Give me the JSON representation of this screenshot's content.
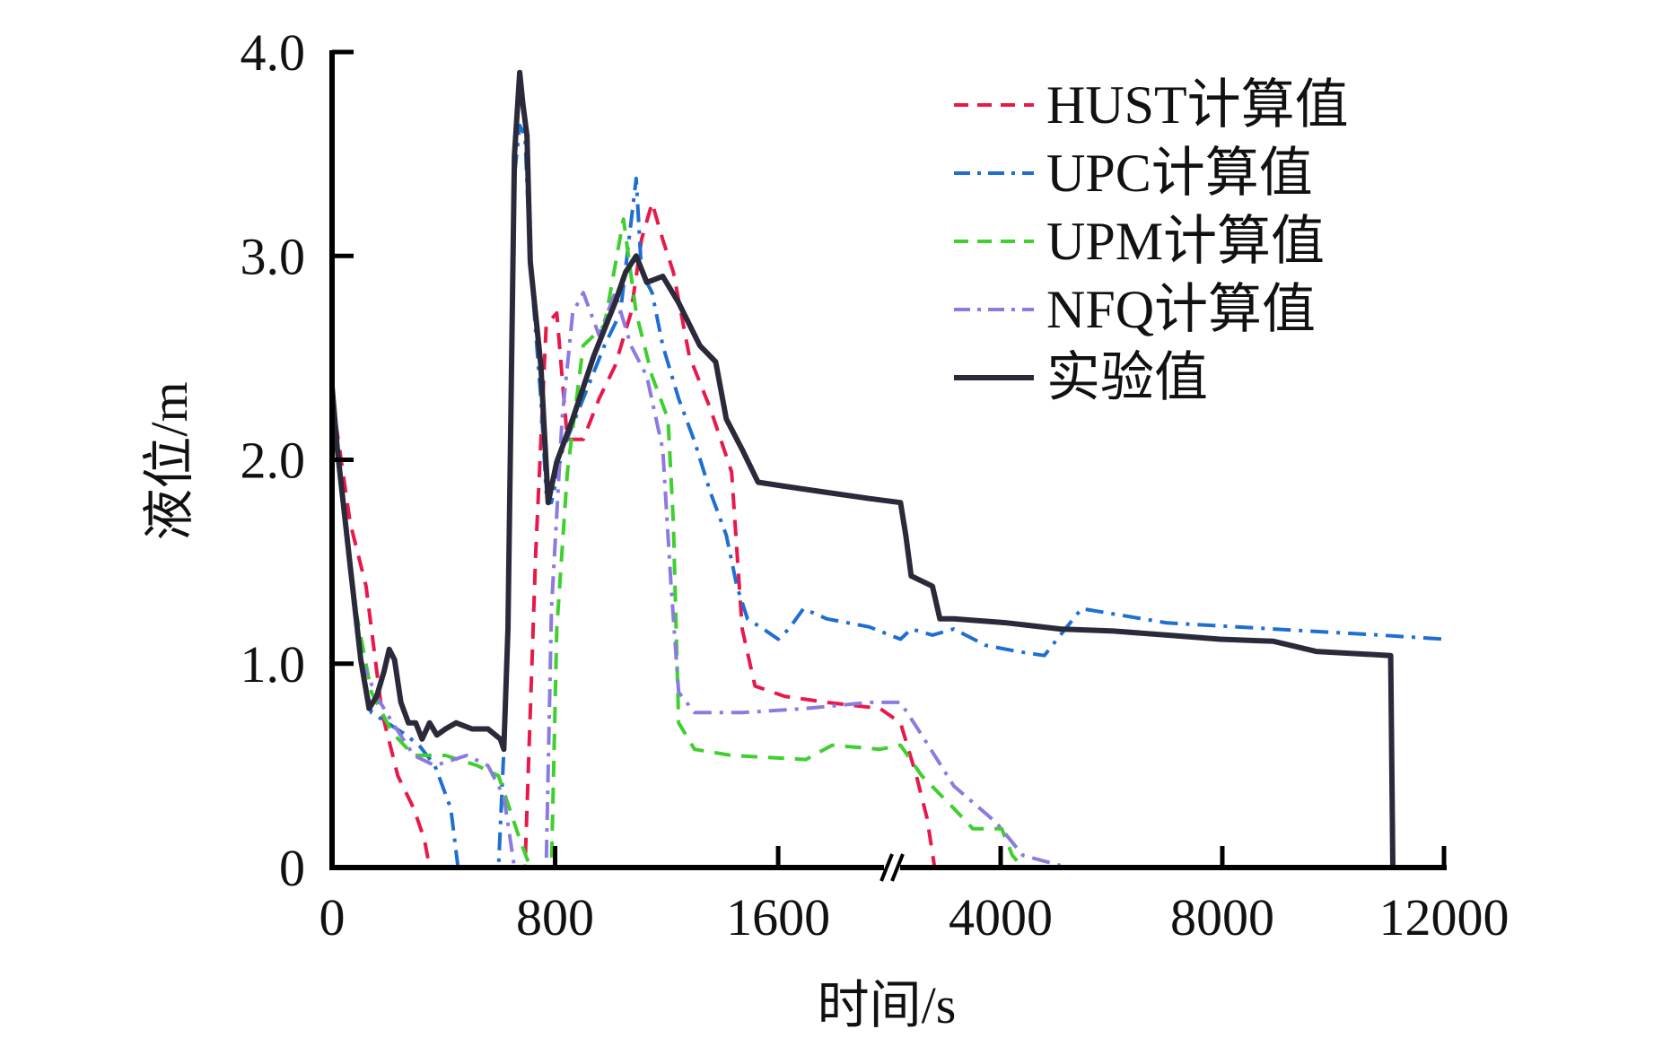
{
  "chart_data": {
    "type": "line",
    "title": "",
    "xlabel": "时间/s",
    "ylabel": "液位/m",
    "ylim": [
      0,
      4.0
    ],
    "xlim": [
      0,
      12000
    ],
    "x_axis_break": [
      2015,
      2060
    ],
    "xticks": [
      0,
      800,
      1600,
      4000,
      8000,
      12000
    ],
    "xtick_labels": [
      "0",
      "800",
      "1600",
      "4000",
      "8000",
      "12000"
    ],
    "yticks": [
      0,
      1.0,
      2.0,
      3.0,
      4.0
    ],
    "ytick_labels": [
      "0",
      "1.0",
      "2.0",
      "3.0",
      "4.0"
    ],
    "grid": false,
    "legend_position": "top-right",
    "series": [
      {
        "name": "HUST计算值",
        "color": "#e8194a",
        "style": "dashed",
        "x": [
          0,
          65,
          122,
          179,
          236,
          293,
          331,
          350,
          692,
          730,
          768,
          806,
          844,
          901,
          958,
          1015,
          1072,
          1110,
          1148,
          1186,
          1224,
          1281,
          1357,
          1433,
          1471,
          1517,
          1623,
          1775,
          1965,
          2192,
          2480,
          2673,
          2808
        ],
        "y": [
          2.31,
          1.69,
          1.38,
          0.76,
          0.45,
          0.29,
          0.14,
          0,
          0,
          1.53,
          2.66,
          2.72,
          2.1,
          2.1,
          2.3,
          2.46,
          2.72,
          3.08,
          3.26,
          3.08,
          2.92,
          2.51,
          2.25,
          1.94,
          1.17,
          0.89,
          0.84,
          0.81,
          0.78,
          0.71,
          0.45,
          0.24,
          0
        ]
      },
      {
        "name": "UPC计算值",
        "color": "#1f6fd0",
        "style": "dash-dot",
        "x": [
          0,
          103,
          141,
          198,
          255,
          312,
          369,
          426,
          452,
          597,
          627,
          654,
          673,
          692,
          711,
          749,
          768,
          787,
          825,
          901,
          977,
          1034,
          1091,
          1110,
          1148,
          1186,
          1243,
          1300,
          1357,
          1414,
          1452,
          1490,
          1547,
          1600,
          1638,
          1691,
          1775,
          1927,
          2192,
          2385,
          2770,
          3154,
          3730,
          4300,
          4788,
          5077,
          5460,
          7000,
          8923,
          10846,
          12000
        ],
        "y": [
          2.31,
          1.02,
          0.76,
          0.71,
          0.66,
          0.6,
          0.5,
          0.29,
          0,
          0,
          0.91,
          3.39,
          3.64,
          3.59,
          2.97,
          2.3,
          1.84,
          1.79,
          2.04,
          2.3,
          2.56,
          2.72,
          3.38,
          2.92,
          2.82,
          2.56,
          2.3,
          2.09,
          1.84,
          1.63,
          1.38,
          1.22,
          1.17,
          1.12,
          1.17,
          1.27,
          1.22,
          1.18,
          1.12,
          1.17,
          1.14,
          1.17,
          1.09,
          1.06,
          1.04,
          1.14,
          1.27,
          1.2,
          1.17,
          1.14,
          1.12
        ]
      },
      {
        "name": "UPM计算值",
        "color": "#3fcf2f",
        "style": "dashed",
        "x": [
          0,
          84,
          141,
          217,
          293,
          407,
          521,
          597,
          673,
          711,
          787,
          806,
          844,
          901,
          977,
          1045,
          1091,
          1148,
          1205,
          1224,
          1243,
          1300,
          1433,
          1699,
          1794,
          1965,
          2192,
          2577,
          3154,
          3500,
          3635,
          4019,
          4211,
          4400,
          5270
        ],
        "y": [
          2.31,
          1.27,
          0.86,
          0.66,
          0.55,
          0.55,
          0.5,
          0.45,
          0.14,
          0,
          0,
          1.17,
          1.94,
          2.56,
          2.66,
          3.18,
          2.72,
          2.41,
          2.2,
          1.69,
          0.71,
          0.58,
          0.55,
          0.53,
          0.6,
          0.58,
          0.6,
          0.45,
          0.29,
          0.19,
          0.19,
          0.19,
          0.06,
          0,
          0
        ]
      },
      {
        "name": "NFQ计算值",
        "color": "#8b7be0",
        "style": "dash-dot",
        "x": [
          0,
          103,
          160,
          217,
          293,
          369,
          483,
          559,
          616,
          654,
          768,
          787,
          825,
          863,
          901,
          958,
          1015,
          1072,
          1129,
          1186,
          1216,
          1243,
          1300,
          1471,
          1699,
          1927,
          2192,
          2577,
          3154,
          3923,
          4400,
          5077
        ],
        "y": [
          2.31,
          1.02,
          0.84,
          0.71,
          0.55,
          0.5,
          0.55,
          0.5,
          0.35,
          0,
          0,
          1.27,
          2.2,
          2.72,
          2.82,
          2.61,
          2.82,
          2.56,
          2.41,
          2.05,
          1.38,
          0.86,
          0.76,
          0.76,
          0.78,
          0.81,
          0.81,
          0.65,
          0.4,
          0.22,
          0.06,
          0.01
        ]
      },
      {
        "name": "实验值",
        "color": "#2a2a3a",
        "style": "solid",
        "x": [
          0,
          19,
          65,
          103,
          133,
          160,
          186,
          205,
          224,
          247,
          274,
          300,
          323,
          350,
          376,
          407,
          445,
          502,
          559,
          604,
          616,
          631,
          654,
          673,
          684,
          699,
          711,
          749,
          775,
          806,
          863,
          939,
          1015,
          1053,
          1091,
          1129,
          1186,
          1243,
          1319,
          1376,
          1414,
          1471,
          1528,
          1623,
          1775,
          1927,
          2192,
          2288,
          2385,
          2770,
          2904,
          3154,
          4115,
          5077,
          6038,
          7000,
          7960,
          8923,
          9692,
          11038,
          11077
        ],
        "y": [
          2.36,
          2.05,
          1.48,
          1.02,
          0.78,
          0.84,
          0.96,
          1.07,
          1.02,
          0.81,
          0.71,
          0.71,
          0.63,
          0.71,
          0.65,
          0.68,
          0.71,
          0.68,
          0.68,
          0.63,
          0.58,
          1.17,
          3.49,
          3.9,
          3.75,
          3.59,
          2.97,
          2.46,
          1.79,
          1.99,
          2.2,
          2.51,
          2.77,
          2.92,
          3.0,
          2.87,
          2.9,
          2.77,
          2.56,
          2.48,
          2.2,
          2.05,
          1.89,
          1.87,
          1.84,
          1.81,
          1.79,
          1.63,
          1.43,
          1.38,
          1.22,
          1.22,
          1.2,
          1.17,
          1.16,
          1.14,
          1.12,
          1.11,
          1.06,
          1.04,
          0
        ]
      }
    ]
  }
}
